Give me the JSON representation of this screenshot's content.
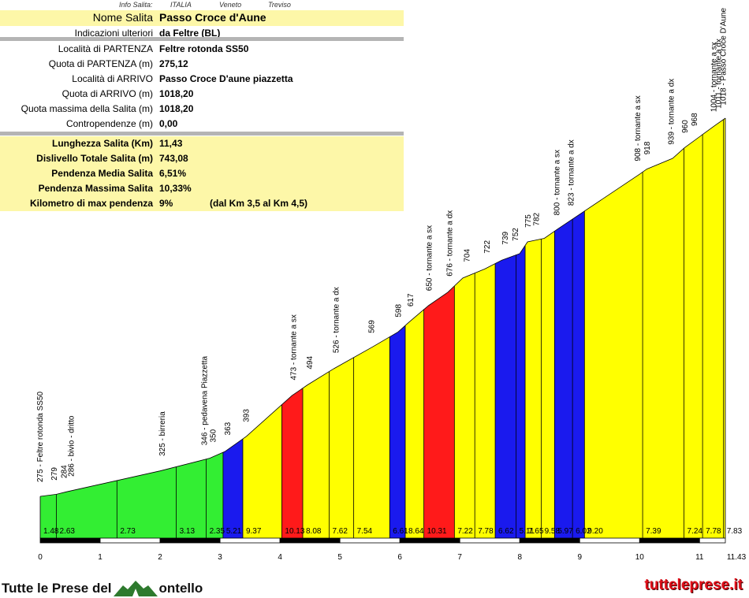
{
  "info": {
    "label": "Info Salita:",
    "country": "ITALIA",
    "region": "Veneto",
    "province": "Treviso"
  },
  "table": {
    "name_label": "Nome Salita",
    "name_value": "Passo Croce d'Aune",
    "further_label": "Indicazioni ulteriori",
    "further_value": "da Feltre (BL)",
    "start_loc_label": "Località di PARTENZA",
    "start_loc_value": "Feltre rotonda SS50",
    "start_alt_label": "Quota di PARTENZA (m)",
    "start_alt_value": "275,12",
    "end_loc_label": "Località di ARRIVO",
    "end_loc_value": "Passo Croce D'aune piazzetta",
    "end_alt_label": "Quota di ARRIVO (m)",
    "end_alt_value": "1018,20",
    "max_alt_label": "Quota massima della Salita (m)",
    "max_alt_value": "1018,20",
    "counter_label": "Contropendenze (m)",
    "counter_value": "0,00",
    "length_label": "Lunghezza Salita (Km)",
    "length_value": "11,43",
    "gain_label": "Dislivello Totale Salita (m)",
    "gain_value": "743,08",
    "avg_label": "Pendenza Media Salita",
    "avg_value": "6,51%",
    "maxgrad_label": "Pendenza Massima Salita",
    "maxgrad_value": "10,33%",
    "km_label": "Kilometro di max pendenza",
    "km_value": "9%",
    "km_extra": "(dal Km 3,5 al Km 4,5)"
  },
  "colors": {
    "green": "#33ee33",
    "yellow": "#ffff00",
    "blue": "#1a1aee",
    "red": "#ff1a1a",
    "table_yellow": "#fdf7a8",
    "separator": "#b4b4b4",
    "url_red": "#e0101a"
  },
  "footer": {
    "brand_prefix": "Tutte le Prese del",
    "brand_suffix": "ontello",
    "url": "tutteleprese.it"
  },
  "chart_data": {
    "type": "area",
    "xlabel": "",
    "ylabel": "",
    "xlim": [
      0,
      11.43
    ],
    "x_ticks": [
      "0",
      "1",
      "2",
      "3",
      "4",
      "5",
      "6",
      "7",
      "8",
      "9",
      "10",
      "11",
      "11.43"
    ],
    "profile_x": [
      0,
      0.27,
      0.44,
      2.0,
      2.83,
      3.08,
      3.44,
      4.2,
      4.46,
      4.9,
      5.55,
      5.97,
      6.15,
      6.48,
      6.8,
      7.05,
      7.42,
      7.7,
      8.0,
      8.13,
      8.41,
      8.63,
      10.0,
      10.12,
      10.55,
      10.75,
      11.26,
      11.43
    ],
    "profile_alt": [
      275,
      279,
      284,
      325,
      350,
      363,
      393,
      473,
      494,
      526,
      569,
      598,
      617,
      650,
      676,
      704,
      722,
      739,
      752,
      775,
      782,
      800,
      908,
      918,
      939,
      960,
      1004,
      1018
    ],
    "segment_grades": [
      {
        "label": "1.48",
        "x": 0.0,
        "color": "green"
      },
      {
        "label": "2.63",
        "x": 0.27,
        "color": "green"
      },
      {
        "label": "2.73",
        "x": 1.28,
        "color": "green"
      },
      {
        "label": "3.13",
        "x": 2.27,
        "color": "green"
      },
      {
        "label": "2.35",
        "x": 2.77,
        "color": "green"
      },
      {
        "label": "5.21",
        "x": 3.05,
        "color": "blue"
      },
      {
        "label": "9.37",
        "x": 3.38,
        "color": "yellow"
      },
      {
        "label": "10.13",
        "x": 4.03,
        "color": "red"
      },
      {
        "label": "8.08",
        "x": 4.38,
        "color": "yellow"
      },
      {
        "label": "7.62",
        "x": 4.82,
        "color": "yellow"
      },
      {
        "label": "7.54",
        "x": 5.23,
        "color": "yellow"
      },
      {
        "label": "6.61",
        "x": 5.83,
        "color": "blue"
      },
      {
        "label": "8.64",
        "x": 6.09,
        "color": "yellow"
      },
      {
        "label": "10.31",
        "x": 6.4,
        "color": "red"
      },
      {
        "label": "7.22",
        "x": 6.91,
        "color": "yellow"
      },
      {
        "label": "7.78",
        "x": 7.25,
        "color": "yellow"
      },
      {
        "label": "6.62",
        "x": 7.59,
        "color": "blue"
      },
      {
        "label": "5.11",
        "x": 7.94,
        "color": "blue"
      },
      {
        "label": "7.65",
        "x": 8.09,
        "color": "yellow"
      },
      {
        "label": "9.58",
        "x": 8.36,
        "color": "yellow"
      },
      {
        "label": "5.97",
        "x": 8.58,
        "color": "blue"
      },
      {
        "label": "6.02",
        "x": 8.88,
        "color": "blue"
      },
      {
        "label": "9.20",
        "x": 9.08,
        "color": "yellow"
      },
      {
        "label": "7.39",
        "x": 10.05,
        "color": "yellow"
      },
      {
        "label": "7.24",
        "x": 10.74,
        "color": "yellow"
      },
      {
        "label": "7.78",
        "x": 11.05,
        "color": "yellow"
      },
      {
        "label": "7.83",
        "x": 11.4,
        "color": "yellow"
      }
    ],
    "waypoints": [
      {
        "km": 0.0,
        "text": "275 - Feltre rotonda SS50"
      },
      {
        "km": 0.24,
        "text": "279"
      },
      {
        "km": 0.4,
        "text": "284"
      },
      {
        "km": 0.52,
        "text": "286 - bivio - dritto"
      },
      {
        "km": 2.04,
        "text": "325 - birreria"
      },
      {
        "km": 2.74,
        "text": "346 - pedavena Piazzetta"
      },
      {
        "km": 2.89,
        "text": "350"
      },
      {
        "km": 3.13,
        "text": "363"
      },
      {
        "km": 3.44,
        "text": "393"
      },
      {
        "km": 4.23,
        "text": "473 - tornante a sx"
      },
      {
        "km": 4.5,
        "text": "494"
      },
      {
        "km": 4.94,
        "text": "526 - tornante a dx"
      },
      {
        "km": 5.53,
        "text": "569"
      },
      {
        "km": 5.98,
        "text": "598"
      },
      {
        "km": 6.18,
        "text": "617"
      },
      {
        "km": 6.49,
        "text": "650 - tornante a sx"
      },
      {
        "km": 6.83,
        "text": "676 - tornante a dx"
      },
      {
        "km": 7.12,
        "text": "704"
      },
      {
        "km": 7.46,
        "text": "722"
      },
      {
        "km": 7.76,
        "text": "739"
      },
      {
        "km": 7.93,
        "text": "752"
      },
      {
        "km": 8.14,
        "text": "775"
      },
      {
        "km": 8.28,
        "text": "782"
      },
      {
        "km": 8.62,
        "text": "800 - tornante a sx"
      },
      {
        "km": 8.86,
        "text": "823 - tornante a dx"
      },
      {
        "km": 9.97,
        "text": "908 - tornante a sx"
      },
      {
        "km": 10.13,
        "text": "918"
      },
      {
        "km": 10.53,
        "text": "939 - tornante a dx"
      },
      {
        "km": 10.76,
        "text": "960"
      },
      {
        "km": 10.92,
        "text": "968"
      },
      {
        "km": 11.24,
        "text": "1004 - tornante a sx"
      },
      {
        "km": 11.32,
        "text": "1011 - tornante a dx"
      },
      {
        "km": 11.4,
        "text": "1018 - Passo Croce D'Aune"
      }
    ]
  }
}
